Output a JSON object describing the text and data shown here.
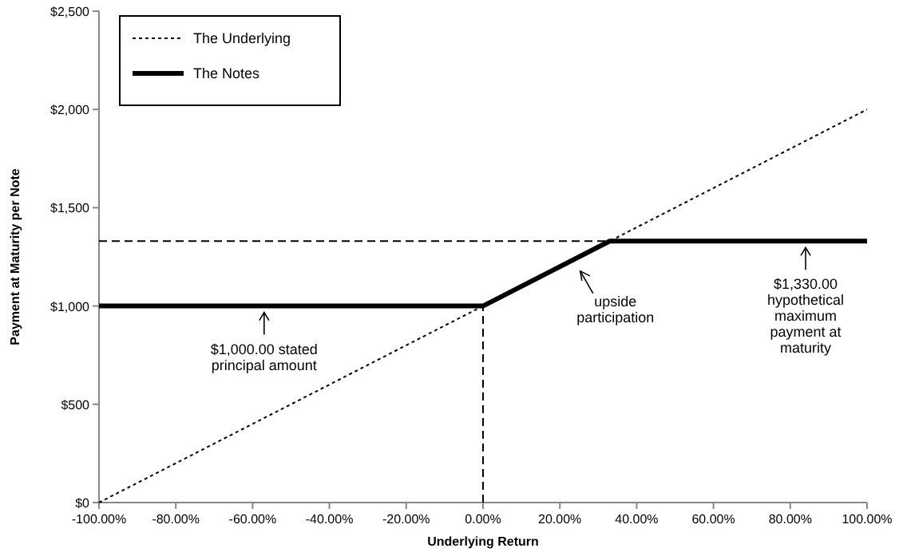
{
  "chart_data": {
    "type": "line",
    "xlabel": "Underlying Return",
    "ylabel": "Payment at Maturity per Note",
    "xlim": [
      -100,
      100
    ],
    "ylim": [
      0,
      2500
    ],
    "xticks": [
      {
        "value": -100,
        "label": "-100.00%"
      },
      {
        "value": -80,
        "label": "-80.00%"
      },
      {
        "value": -60,
        "label": "-60.00%"
      },
      {
        "value": -40,
        "label": "-40.00%"
      },
      {
        "value": -20,
        "label": "-20.00%"
      },
      {
        "value": 0,
        "label": "0.00%"
      },
      {
        "value": 20,
        "label": "20.00%"
      },
      {
        "value": 40,
        "label": "40.00%"
      },
      {
        "value": 60,
        "label": "60.00%"
      },
      {
        "value": 80,
        "label": "80.00%"
      },
      {
        "value": 100,
        "label": "100.00%"
      }
    ],
    "yticks": [
      {
        "value": 0,
        "label": "$0"
      },
      {
        "value": 500,
        "label": "$500"
      },
      {
        "value": 1000,
        "label": "$1,000"
      },
      {
        "value": 1500,
        "label": "$1,500"
      },
      {
        "value": 2000,
        "label": "$2,000"
      },
      {
        "value": 2500,
        "label": "$2,500"
      }
    ],
    "series": [
      {
        "name": "The Underlying",
        "color": "#000000",
        "line_style": "dotted",
        "x": [
          -100,
          100
        ],
        "values": [
          0,
          2000
        ]
      },
      {
        "name": "The Notes",
        "color": "#000000",
        "line_style": "solid",
        "x": [
          -100,
          0,
          33,
          100
        ],
        "values": [
          1000,
          1000,
          1330,
          1330
        ]
      },
      {
        "color": "#000000",
        "line_style": "dashed",
        "x": [
          -100,
          33
        ],
        "values": [
          1330,
          1330
        ]
      },
      {
        "color": "#000000",
        "line_style": "dashed",
        "x": [
          0,
          0
        ],
        "values": [
          0,
          1000
        ]
      }
    ],
    "annotations": [
      {
        "text": "$1,000.00 stated\nprincipal amount",
        "x": -57,
        "y": 1000
      },
      {
        "text": "upside\nparticipation",
        "x": 22,
        "y": 1210
      },
      {
        "text": "$1,330.00\nhypothetical\nmaximum\npayment at\nmaturity",
        "x": 84,
        "y": 1330
      }
    ],
    "legend": "top left",
    "grid": false
  }
}
